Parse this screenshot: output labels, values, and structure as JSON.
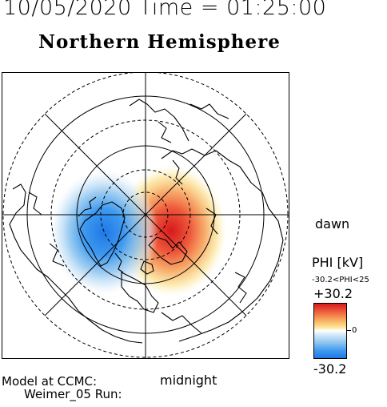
{
  "header": {
    "datetime": "10/05/2020 Time = 01:25:00",
    "hemisphere": "Northern Hemisphere"
  },
  "map": {
    "orientation_labels": {
      "dawn": "dawn",
      "midnight": "midnight"
    },
    "field": {
      "positive_cell": "dawn / post-midnight side",
      "negative_cell": "dusk / pre-midnight side"
    }
  },
  "colorbar": {
    "title": "PHI [kV]",
    "range_text": "-30.2<PHI<25",
    "max_label": "+30.2",
    "zero_label": "0",
    "min_label": "-30.2",
    "max_value": 30.2,
    "min_value": -30.2,
    "colors": {
      "high": "#d7191c",
      "mid": "#ffffff",
      "low": "#1e78e6"
    }
  },
  "footer": {
    "model_label": "Model at CCMC:",
    "run_label": "Weimer_05 Run:"
  }
}
